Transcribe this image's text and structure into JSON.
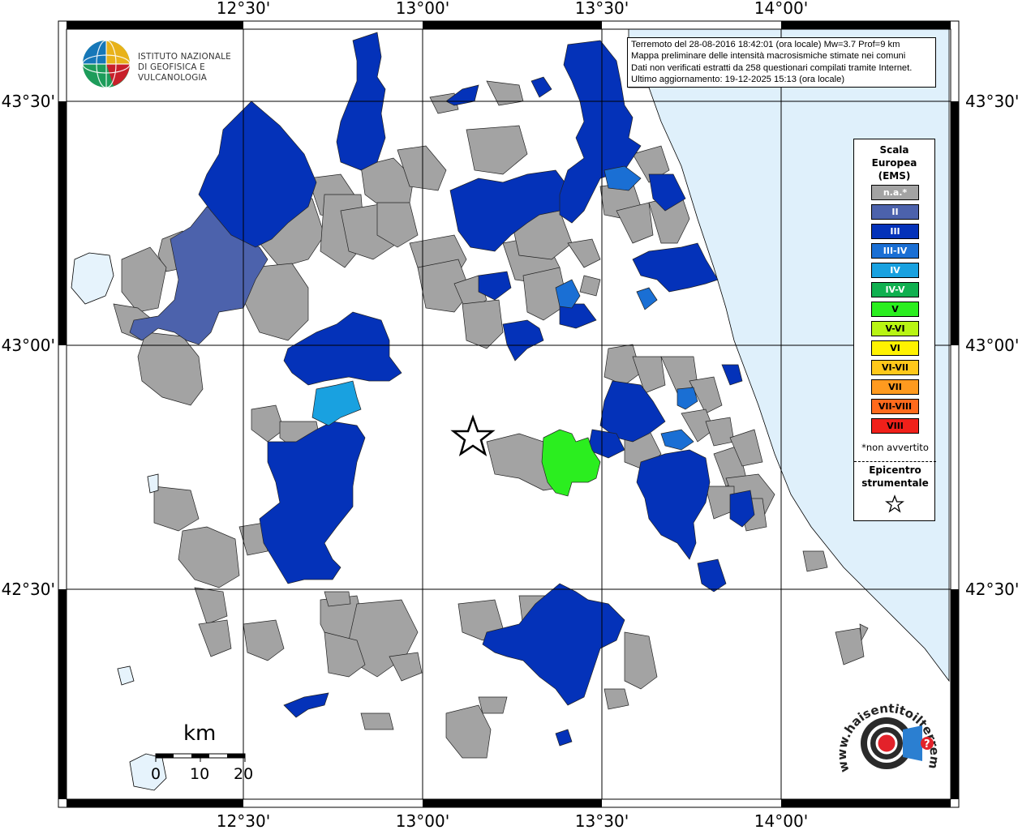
{
  "map": {
    "top_ticks": [
      "12°30'",
      "13°00'",
      "13°30'",
      "14°00'"
    ],
    "bottom_ticks": [
      "12°30'",
      "13°00'",
      "13°30'",
      "14°00'"
    ],
    "left_ticks": [
      "43°30'",
      "43°00'",
      "42°30'"
    ],
    "right_ticks": [
      "43°30'",
      "43°00'",
      "42°30'"
    ],
    "colors": {
      "sea": "#dff0fb",
      "na": "#a3a3a3",
      "II": "#4c62ac",
      "III": "#0432b9",
      "III-IV": "#1a6fd4",
      "IV": "#19a1e0",
      "V": "#2bee1f"
    }
  },
  "info": {
    "line1": "Terremoto del 28-08-2016 18:42:01 (ora locale) Mw=3.7 Prof=9 km",
    "line2": "Mappa preliminare delle intensità macrosismiche stimate nei comuni",
    "line3": "Dati non verificati estratti da 258 questionari compilati tramite Internet.",
    "line4": "Ultimo aggiornamento: 19-12-2025 15:13 (ora locale)"
  },
  "logo": {
    "line1": "ISTITUTO NAZIONALE",
    "line2": "DI GEOFISICA E VULCANOLOGIA"
  },
  "legend": {
    "title1": "Scala",
    "title2": "Europea",
    "title3": "(EMS)",
    "items": [
      {
        "label": "n.a.*",
        "color": "#a3a3a3",
        "text": "#ffffff"
      },
      {
        "label": "II",
        "color": "#4c62ac",
        "text": "#ffffff"
      },
      {
        "label": "III",
        "color": "#0432b9",
        "text": "#ffffff"
      },
      {
        "label": "III-IV",
        "color": "#1a6fd4",
        "text": "#ffffff"
      },
      {
        "label": "IV",
        "color": "#19a1e0",
        "text": "#ffffff"
      },
      {
        "label": "IV-V",
        "color": "#10b050",
        "text": "#ffffff"
      },
      {
        "label": "V",
        "color": "#2bee1f",
        "text": "#000000"
      },
      {
        "label": "V-VI",
        "color": "#b8f513",
        "text": "#000000"
      },
      {
        "label": "VI",
        "color": "#fff200",
        "text": "#000000"
      },
      {
        "label": "VI-VII",
        "color": "#ffc81a",
        "text": "#000000"
      },
      {
        "label": "VII",
        "color": "#ff9a1f",
        "text": "#000000"
      },
      {
        "label": "VII-VIII",
        "color": "#ff6a1c",
        "text": "#000000"
      },
      {
        "label": "VIII",
        "color": "#f0201a",
        "text": "#000000"
      }
    ],
    "na_note": "*non avvertito",
    "epi1": "Epicentro",
    "epi2": "strumentale"
  },
  "scalebar": {
    "unit": "km",
    "labels": [
      "0",
      "10",
      "20"
    ]
  },
  "hsit": {
    "brand": "www.haisentitoilterremoto.it"
  }
}
